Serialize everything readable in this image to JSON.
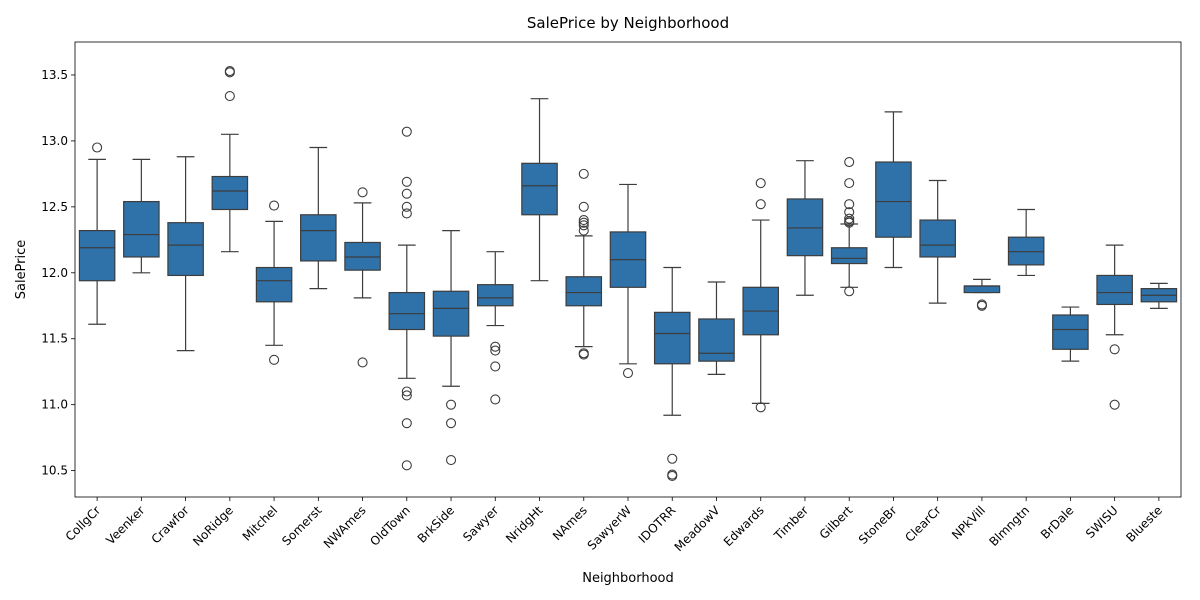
{
  "chart_data": {
    "type": "box",
    "title": "SalePrice by Neighborhood",
    "xlabel": "Neighborhood",
    "ylabel": "SalePrice",
    "ylim": [
      10.3,
      13.75
    ],
    "yticks": [
      10.5,
      11.0,
      11.5,
      12.0,
      12.5,
      13.0,
      13.5
    ],
    "ytick_labels": [
      "10.5",
      "11.0",
      "11.5",
      "12.0",
      "12.5",
      "13.0",
      "13.5"
    ],
    "grid": false,
    "box_color": "#2f72aa",
    "categories": [
      "CollgCr",
      "Veenker",
      "Crawfor",
      "NoRidge",
      "Mitchel",
      "Somerst",
      "NWAmes",
      "OldTown",
      "BrkSide",
      "Sawyer",
      "NridgHt",
      "NAmes",
      "SawyerW",
      "IDOTRR",
      "MeadowV",
      "Edwards",
      "Timber",
      "Gilbert",
      "StoneBr",
      "ClearCr",
      "NPkVill",
      "Blmngtn",
      "BrDale",
      "SWISU",
      "Blueste"
    ],
    "boxes": [
      {
        "name": "CollgCr",
        "whisker_low": 11.61,
        "q1": 11.94,
        "median": 12.19,
        "q3": 12.32,
        "whisker_high": 12.86,
        "outliers": [
          12.95
        ]
      },
      {
        "name": "Veenker",
        "whisker_low": 12.0,
        "q1": 12.12,
        "median": 12.29,
        "q3": 12.54,
        "whisker_high": 12.86,
        "outliers": []
      },
      {
        "name": "Crawfor",
        "whisker_low": 11.41,
        "q1": 11.98,
        "median": 12.21,
        "q3": 12.38,
        "whisker_high": 12.88,
        "outliers": []
      },
      {
        "name": "NoRidge",
        "whisker_low": 12.16,
        "q1": 12.48,
        "median": 12.62,
        "q3": 12.73,
        "whisker_high": 13.05,
        "outliers": [
          13.34,
          13.52,
          13.53
        ]
      },
      {
        "name": "Mitchel",
        "whisker_low": 11.45,
        "q1": 11.78,
        "median": 11.94,
        "q3": 12.04,
        "whisker_high": 12.39,
        "outliers": [
          11.34,
          12.51
        ]
      },
      {
        "name": "Somerst",
        "whisker_low": 11.88,
        "q1": 12.09,
        "median": 12.32,
        "q3": 12.44,
        "whisker_high": 12.95,
        "outliers": []
      },
      {
        "name": "NWAmes",
        "whisker_low": 11.81,
        "q1": 12.02,
        "median": 12.12,
        "q3": 12.23,
        "whisker_high": 12.53,
        "outliers": [
          11.32,
          12.61
        ]
      },
      {
        "name": "OldTown",
        "whisker_low": 11.2,
        "q1": 11.57,
        "median": 11.69,
        "q3": 11.85,
        "whisker_high": 12.21,
        "outliers": [
          10.54,
          10.86,
          11.07,
          11.1,
          12.45,
          12.5,
          12.6,
          12.69,
          13.07
        ]
      },
      {
        "name": "BrkSide",
        "whisker_low": 11.14,
        "q1": 11.52,
        "median": 11.73,
        "q3": 11.86,
        "whisker_high": 12.32,
        "outliers": [
          10.58,
          10.86,
          11.0
        ]
      },
      {
        "name": "Sawyer",
        "whisker_low": 11.6,
        "q1": 11.75,
        "median": 11.81,
        "q3": 11.91,
        "whisker_high": 12.16,
        "outliers": [
          11.04,
          11.29,
          11.41,
          11.44
        ]
      },
      {
        "name": "NridgHt",
        "whisker_low": 11.94,
        "q1": 12.44,
        "median": 12.66,
        "q3": 12.83,
        "whisker_high": 13.32,
        "outliers": []
      },
      {
        "name": "NAmes",
        "whisker_low": 11.44,
        "q1": 11.75,
        "median": 11.85,
        "q3": 11.97,
        "whisker_high": 12.28,
        "outliers": [
          11.38,
          11.39,
          12.32,
          12.36,
          12.38,
          12.4,
          12.5,
          12.75
        ]
      },
      {
        "name": "SawyerW",
        "whisker_low": 11.31,
        "q1": 11.89,
        "median": 12.1,
        "q3": 12.31,
        "whisker_high": 12.67,
        "outliers": [
          11.24
        ]
      },
      {
        "name": "IDOTRR",
        "whisker_low": 10.92,
        "q1": 11.31,
        "median": 11.54,
        "q3": 11.7,
        "whisker_high": 12.04,
        "outliers": [
          10.46,
          10.47,
          10.59
        ]
      },
      {
        "name": "MeadowV",
        "whisker_low": 11.23,
        "q1": 11.33,
        "median": 11.39,
        "q3": 11.65,
        "whisker_high": 11.93,
        "outliers": []
      },
      {
        "name": "Edwards",
        "whisker_low": 11.01,
        "q1": 11.53,
        "median": 11.71,
        "q3": 11.89,
        "whisker_high": 12.4,
        "outliers": [
          10.98,
          12.52,
          12.68
        ]
      },
      {
        "name": "Timber",
        "whisker_low": 11.83,
        "q1": 12.13,
        "median": 12.34,
        "q3": 12.56,
        "whisker_high": 12.85,
        "outliers": []
      },
      {
        "name": "Gilbert",
        "whisker_low": 11.89,
        "q1": 12.07,
        "median": 12.11,
        "q3": 12.19,
        "whisker_high": 12.37,
        "outliers": [
          11.86,
          12.38,
          12.39,
          12.41,
          12.46,
          12.52,
          12.68,
          12.84
        ]
      },
      {
        "name": "StoneBr",
        "whisker_low": 12.04,
        "q1": 12.27,
        "median": 12.54,
        "q3": 12.84,
        "whisker_high": 13.22,
        "outliers": []
      },
      {
        "name": "ClearCr",
        "whisker_low": 11.77,
        "q1": 12.12,
        "median": 12.21,
        "q3": 12.4,
        "whisker_high": 12.7,
        "outliers": []
      },
      {
        "name": "NPkVill",
        "whisker_low": 11.85,
        "q1": 11.85,
        "median": 11.9,
        "q3": 11.9,
        "whisker_high": 11.95,
        "outliers": [
          11.75,
          11.76
        ]
      },
      {
        "name": "Blmngtn",
        "whisker_low": 11.98,
        "q1": 12.06,
        "median": 12.16,
        "q3": 12.27,
        "whisker_high": 12.48,
        "outliers": []
      },
      {
        "name": "BrDale",
        "whisker_low": 11.33,
        "q1": 11.42,
        "median": 11.57,
        "q3": 11.68,
        "whisker_high": 11.74,
        "outliers": []
      },
      {
        "name": "SWISU",
        "whisker_low": 11.53,
        "q1": 11.76,
        "median": 11.85,
        "q3": 11.98,
        "whisker_high": 12.21,
        "outliers": [
          11.0,
          11.42
        ]
      },
      {
        "name": "Blueste",
        "whisker_low": 11.73,
        "q1": 11.78,
        "median": 11.83,
        "q3": 11.88,
        "whisker_high": 11.92,
        "outliers": []
      }
    ]
  }
}
